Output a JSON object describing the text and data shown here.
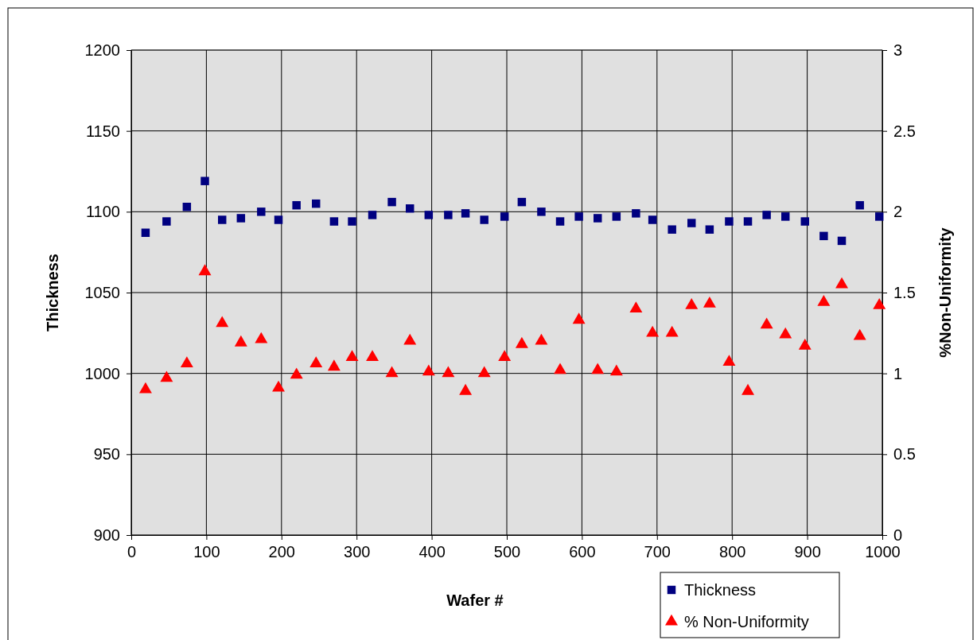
{
  "chart_data": {
    "type": "scatter",
    "xlabel": "Wafer #",
    "ylabel": "Thickness",
    "y2label": "%Non-Uniformity",
    "xlim": [
      0,
      1000
    ],
    "xticks": [
      0,
      100,
      200,
      300,
      400,
      500,
      600,
      700,
      800,
      900,
      1000
    ],
    "ylim": [
      900,
      1200
    ],
    "yticks": [
      900,
      950,
      1000,
      1050,
      1100,
      1150,
      1200
    ],
    "y2lim": [
      0,
      3
    ],
    "y2ticks": [
      0,
      0.5,
      1,
      1.5,
      2,
      2.5,
      3
    ],
    "grid": true,
    "legend": "bottom right",
    "x": [
      19,
      47,
      74,
      98,
      121,
      146,
      173,
      196,
      220,
      246,
      270,
      294,
      321,
      347,
      371,
      396,
      422,
      445,
      470,
      497,
      520,
      546,
      571,
      596,
      621,
      646,
      672,
      694,
      720,
      746,
      770,
      796,
      821,
      846,
      871,
      897,
      922,
      946,
      970,
      996
    ],
    "series": [
      {
        "name": "Thickness",
        "color": "#000080",
        "marker": "square",
        "values": [
          1087,
          1094,
          1103,
          1119,
          1095,
          1096,
          1100,
          1095,
          1104,
          1105,
          1094,
          1094,
          1098,
          1106,
          1102,
          1098,
          1098,
          1099,
          1095,
          1097,
          1106,
          1100,
          1094,
          1097,
          1096,
          1097,
          1099,
          1095,
          1089,
          1093,
          1089,
          1094,
          1094,
          1098,
          1097,
          1094,
          1085,
          1082,
          1104,
          1097
        ]
      },
      {
        "name": "% Non-Uniformity",
        "color": "#ff0000",
        "marker": "triangle",
        "axis": "y2",
        "values": [
          0.9,
          0.97,
          1.06,
          1.63,
          1.31,
          1.19,
          1.21,
          0.91,
          0.99,
          1.06,
          1.04,
          1.1,
          1.1,
          1.0,
          1.2,
          1.01,
          1.0,
          0.89,
          1.0,
          1.1,
          1.18,
          1.2,
          1.02,
          1.33,
          1.02,
          1.01,
          1.4,
          1.25,
          1.25,
          1.42,
          1.43,
          1.07,
          0.89,
          1.3,
          1.24,
          1.17,
          1.44,
          1.55,
          1.23,
          1.42
        ]
      }
    ]
  }
}
